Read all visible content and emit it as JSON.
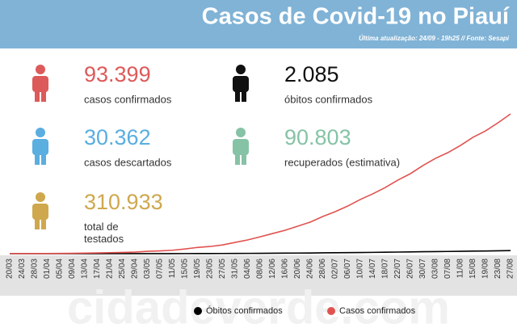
{
  "header": {
    "title": "Casos de Covid-19 no Piauí",
    "subtitle": "Última atualização: 24/09 - 19h25 // Fonte: Sesapi"
  },
  "stats": [
    {
      "value": "93.399",
      "label": "casos confirmados",
      "color": "#dd5a5a"
    },
    {
      "value": "2.085",
      "label": "óbitos confirmados",
      "color": "#111111"
    },
    {
      "value": "30.362",
      "label": "casos descartados",
      "color": "#5aaee0"
    },
    {
      "value": "90.803",
      "label": "recuperados (estimativa)",
      "color": "#86c3a6"
    },
    {
      "value": "310.933",
      "label": "total de testados",
      "color": "#cfa84e"
    }
  ],
  "watermark": "cidadeverde.com",
  "chart_data": {
    "type": "line",
    "categories": [
      "20/03",
      "24/03",
      "28/03",
      "01/04",
      "05/04",
      "09/04",
      "13/04",
      "17/04",
      "21/04",
      "25/04",
      "29/04",
      "03/05",
      "07/05",
      "11/05",
      "15/05",
      "19/05",
      "23/05",
      "27/05",
      "31/05",
      "04/06",
      "08/06",
      "12/06",
      "16/06",
      "20/06",
      "24/06",
      "28/06",
      "02/07",
      "06/07",
      "10/07",
      "14/07",
      "18/07",
      "22/07",
      "26/07",
      "30/07",
      "03/08",
      "07/08",
      "11/08",
      "15/08",
      "19/08",
      "23/08",
      "27/08"
    ],
    "series": [
      {
        "name": "Óbitos confirmados",
        "color": "#000000",
        "values": [
          0,
          1,
          1,
          2,
          3,
          5,
          8,
          11,
          14,
          18,
          22,
          33,
          40,
          48,
          66,
          88,
          101,
          123,
          158,
          194,
          238,
          284,
          330,
          387,
          444,
          524,
          592,
          671,
          763,
          843,
          933,
          1036,
          1126,
          1241,
          1342,
          1423,
          1525,
          1639,
          1729,
          1844,
          1969
        ]
      },
      {
        "name": "Casos confirmados",
        "color": "#e0524f",
        "values": [
          0,
          20,
          50,
          100,
          150,
          250,
          350,
          500,
          650,
          800,
          1000,
          1500,
          1800,
          2200,
          3000,
          4000,
          4600,
          5600,
          7200,
          8800,
          10800,
          12900,
          15000,
          17600,
          20200,
          23800,
          26900,
          30500,
          34700,
          38300,
          42400,
          47100,
          51200,
          56400,
          61000,
          64700,
          69300,
          74500,
          78600,
          83800,
          89500
        ]
      }
    ],
    "ylim": [
      0,
      90000
    ],
    "legend": "bottom"
  }
}
